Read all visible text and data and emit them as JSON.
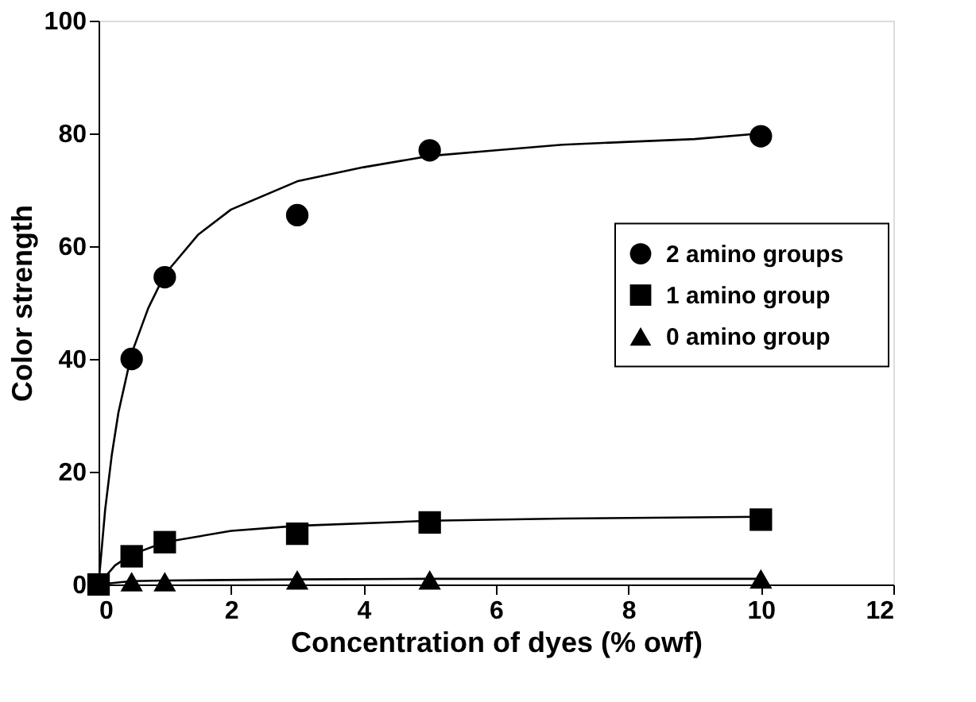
{
  "chart_data": {
    "type": "scatter",
    "xlabel": "Concentration of dyes (% owf)",
    "ylabel": "Color strength",
    "xlim": [
      0,
      12
    ],
    "ylim": [
      0,
      100
    ],
    "xticks": [
      0,
      2,
      4,
      6,
      8,
      10,
      12
    ],
    "yticks": [
      0,
      20,
      40,
      60,
      80,
      100
    ],
    "grid": false,
    "legend": "right",
    "x": [
      0,
      0.5,
      1,
      3,
      5,
      10
    ],
    "series": [
      {
        "name": "2 amino groups",
        "color": "#000000",
        "marker": "circle",
        "values": [
          null,
          40,
          54.5,
          65.5,
          77,
          79.5
        ]
      },
      {
        "name": "1 amino group",
        "color": "#000000",
        "marker": "square",
        "values": [
          0,
          5,
          7.5,
          9,
          11,
          11.5
        ]
      },
      {
        "name": "0 amino group",
        "color": "#000000",
        "marker": "triangle",
        "values": [
          null,
          0.5,
          0.5,
          0.8,
          0.8,
          1
        ]
      },
      {
        "type": "line",
        "color": "#000000",
        "marker": "none",
        "x": [
          0,
          0.1,
          0.2,
          0.3,
          0.5,
          0.75,
          1,
          1.5,
          2,
          3,
          4,
          5,
          6,
          7,
          8,
          9,
          10
        ],
        "values": [
          0,
          13.3,
          23,
          30.5,
          41,
          49,
          55,
          62,
          66.5,
          71.5,
          74,
          76,
          77,
          78,
          78.5,
          79,
          80
        ]
      },
      {
        "type": "line",
        "color": "#000000",
        "marker": "none",
        "x": [
          0,
          0.25,
          0.5,
          1,
          2,
          3,
          5,
          7,
          10
        ],
        "values": [
          0,
          3.4,
          5.3,
          7.5,
          9.5,
          10.4,
          11.3,
          11.7,
          12
        ]
      },
      {
        "type": "line",
        "color": "#000000",
        "marker": "none",
        "x": [
          0,
          0.5,
          1,
          3,
          5,
          10
        ],
        "values": [
          0,
          0.6,
          0.7,
          0.9,
          1,
          1
        ]
      }
    ]
  }
}
